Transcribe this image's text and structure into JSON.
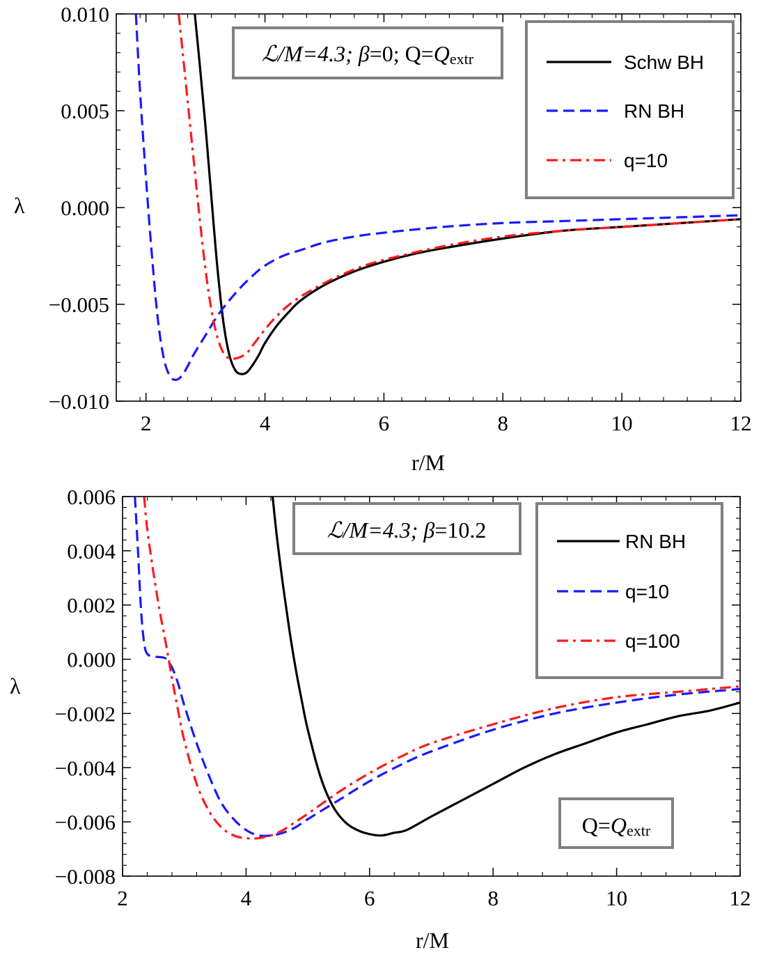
{
  "chart_data": [
    {
      "type": "line",
      "xlabel": "r/M",
      "ylabel": "λ",
      "xlim": [
        1.5,
        12
      ],
      "ylim": [
        -0.01,
        0.01
      ],
      "xticks": [
        2,
        4,
        6,
        8,
        10,
        12
      ],
      "xtick_labels": [
        "2",
        "4",
        "6",
        "8",
        "10",
        "12"
      ],
      "yticks": [
        -0.01,
        -0.005,
        0.0,
        0.005,
        0.01
      ],
      "ytick_labels": [
        "−0.010",
        "−0.005",
        "0.000",
        "0.005",
        "0.010"
      ],
      "annotation": {
        "prefix": "ℒ/M=4.3; ",
        "beta_sym": "β",
        "beta_rest": "=0; Q=",
        "q_sym": "Q",
        "q_sub": "extr"
      },
      "legend": [
        "Schw BH",
        "RN BH",
        "q=10"
      ],
      "legend_position": "top-right",
      "series": [
        {
          "name": "Schw BH",
          "color": "#000000",
          "style": "solid",
          "x": [
            2.82,
            2.9,
            3.0,
            3.1,
            3.2,
            3.3,
            3.4,
            3.5,
            3.6,
            3.7,
            3.8,
            3.9,
            4.0,
            4.2,
            4.4,
            4.6,
            5.0,
            5.5,
            6.0,
            6.5,
            7.0,
            8.0,
            9.0,
            10.0,
            11.0,
            12.0
          ],
          "y": [
            0.01,
            0.0075,
            0.0042,
            0.0005,
            -0.0031,
            -0.0059,
            -0.0076,
            -0.0084,
            -0.0086,
            -0.0085,
            -0.0081,
            -0.0076,
            -0.007,
            -0.0061,
            -0.0054,
            -0.0048,
            -0.004,
            -0.0033,
            -0.0028,
            -0.0024,
            -0.0021,
            -0.0016,
            -0.0012,
            -0.001,
            -0.0008,
            -0.0006
          ]
        },
        {
          "name": "RN BH",
          "color": "#1a1aff",
          "style": "dashed",
          "x": [
            1.83,
            1.9,
            2.0,
            2.1,
            2.2,
            2.3,
            2.4,
            2.5,
            2.6,
            2.7,
            2.8,
            3.0,
            3.2,
            3.4,
            3.6,
            3.8,
            4.0,
            4.3,
            4.6,
            5.0,
            5.5,
            6.0,
            7.0,
            8.0,
            9.0,
            10.0,
            11.0,
            12.0
          ],
          "y": [
            0.01,
            0.006,
            0.0015,
            -0.0025,
            -0.0058,
            -0.0078,
            -0.0087,
            -0.0089,
            -0.0087,
            -0.0082,
            -0.0076,
            -0.0066,
            -0.0056,
            -0.0048,
            -0.0041,
            -0.0035,
            -0.003,
            -0.0025,
            -0.0022,
            -0.0018,
            -0.0015,
            -0.0013,
            -0.001,
            -0.0008,
            -0.0007,
            -0.0006,
            -0.0005,
            -0.0004
          ]
        },
        {
          "name": "q=10",
          "color": "#ff1a1a",
          "style": "dashdot",
          "x": [
            2.55,
            2.6,
            2.7,
            2.8,
            2.9,
            3.0,
            3.1,
            3.2,
            3.3,
            3.4,
            3.5,
            3.6,
            3.7,
            3.8,
            4.0,
            4.2,
            4.5,
            5.0,
            5.5,
            6.0,
            7.0,
            8.0,
            9.0,
            10.0,
            11.0,
            12.0
          ],
          "y": [
            0.01,
            0.0085,
            0.0055,
            0.0025,
            -0.0005,
            -0.0032,
            -0.0053,
            -0.0067,
            -0.0075,
            -0.0078,
            -0.0078,
            -0.0077,
            -0.0075,
            -0.0071,
            -0.0063,
            -0.0056,
            -0.0048,
            -0.0039,
            -0.0032,
            -0.0027,
            -0.002,
            -0.0015,
            -0.0012,
            -0.001,
            -0.0008,
            -0.0006
          ]
        }
      ]
    },
    {
      "type": "line",
      "xlabel": "r/M",
      "ylabel": "λ",
      "xlim": [
        2,
        12
      ],
      "ylim": [
        -0.008,
        0.006
      ],
      "xticks": [
        2,
        4,
        6,
        8,
        10,
        12
      ],
      "xtick_labels": [
        "2",
        "4",
        "6",
        "8",
        "10",
        "12"
      ],
      "yticks": [
        -0.008,
        -0.006,
        -0.004,
        -0.002,
        0.0,
        0.002,
        0.004,
        0.006
      ],
      "ytick_labels": [
        "−0.008",
        "−0.006",
        "−0.004",
        "−0.002",
        "0.000",
        "0.002",
        "0.004",
        "0.006"
      ],
      "annotation": {
        "prefix": "ℒ/M=4.3; ",
        "beta_sym": "β",
        "beta_rest": "=10.2"
      },
      "annotation2": {
        "q_eq": "Q=",
        "q_sym": "Q",
        "q_sub": "extr"
      },
      "legend": [
        "RN BH",
        "q=10",
        "q=100"
      ],
      "legend_position": "top-right",
      "series": [
        {
          "name": "RN BH",
          "color": "#000000",
          "style": "solid",
          "x": [
            4.43,
            4.5,
            4.6,
            4.7,
            4.8,
            4.9,
            5.0,
            5.2,
            5.4,
            5.6,
            5.8,
            6.0,
            6.2,
            6.4,
            6.6,
            7.0,
            7.5,
            8.0,
            8.5,
            9.0,
            9.5,
            10.0,
            10.5,
            11.0,
            11.5,
            12.0
          ],
          "y": [
            0.006,
            0.0045,
            0.0027,
            0.0011,
            -0.0003,
            -0.0015,
            -0.0026,
            -0.0043,
            -0.0054,
            -0.006,
            -0.0063,
            -0.00645,
            -0.0065,
            -0.0064,
            -0.0063,
            -0.0058,
            -0.0052,
            -0.0046,
            -0.004,
            -0.0035,
            -0.0031,
            -0.0027,
            -0.0024,
            -0.0021,
            -0.0019,
            -0.0016
          ]
        },
        {
          "name": "q=10",
          "color": "#1a1aff",
          "style": "dashed",
          "x": [
            2.2,
            2.25,
            2.3,
            2.35,
            2.4,
            2.5,
            2.6,
            2.7,
            2.8,
            2.9,
            3.0,
            3.2,
            3.4,
            3.6,
            3.8,
            4.0,
            4.2,
            4.4,
            4.6,
            4.8,
            5.0,
            5.5,
            6.0,
            6.5,
            7.0,
            8.0,
            9.0,
            10.0,
            11.0,
            12.0
          ],
          "y": [
            0.006,
            0.004,
            0.0018,
            0.0006,
            0.0002,
            0.0001,
            8e-05,
            2e-05,
            -0.0003,
            -0.0009,
            -0.0017,
            -0.0031,
            -0.0043,
            -0.0053,
            -0.0059,
            -0.0063,
            -0.0065,
            -0.0065,
            -0.0064,
            -0.0062,
            -0.0059,
            -0.0052,
            -0.0045,
            -0.0039,
            -0.0034,
            -0.0026,
            -0.002,
            -0.0016,
            -0.0013,
            -0.0011
          ]
        },
        {
          "name": "q=100",
          "color": "#ff1a1a",
          "style": "dashdot",
          "x": [
            2.35,
            2.4,
            2.5,
            2.6,
            2.7,
            2.8,
            2.9,
            3.0,
            3.2,
            3.4,
            3.6,
            3.8,
            4.0,
            4.2,
            4.4,
            4.6,
            4.8,
            5.0,
            5.5,
            6.0,
            6.5,
            7.0,
            8.0,
            9.0,
            10.0,
            11.0,
            12.0
          ],
          "y": [
            0.006,
            0.0048,
            0.0032,
            0.0018,
            0.0006,
            -0.0007,
            -0.0019,
            -0.003,
            -0.0046,
            -0.0056,
            -0.0062,
            -0.0065,
            -0.0066,
            -0.0066,
            -0.0065,
            -0.0063,
            -0.006,
            -0.0057,
            -0.0049,
            -0.0042,
            -0.0036,
            -0.0031,
            -0.0024,
            -0.0018,
            -0.0014,
            -0.0012,
            -0.001
          ]
        }
      ]
    }
  ],
  "colors": {
    "axis": "#000000",
    "box_border": "#808080"
  }
}
